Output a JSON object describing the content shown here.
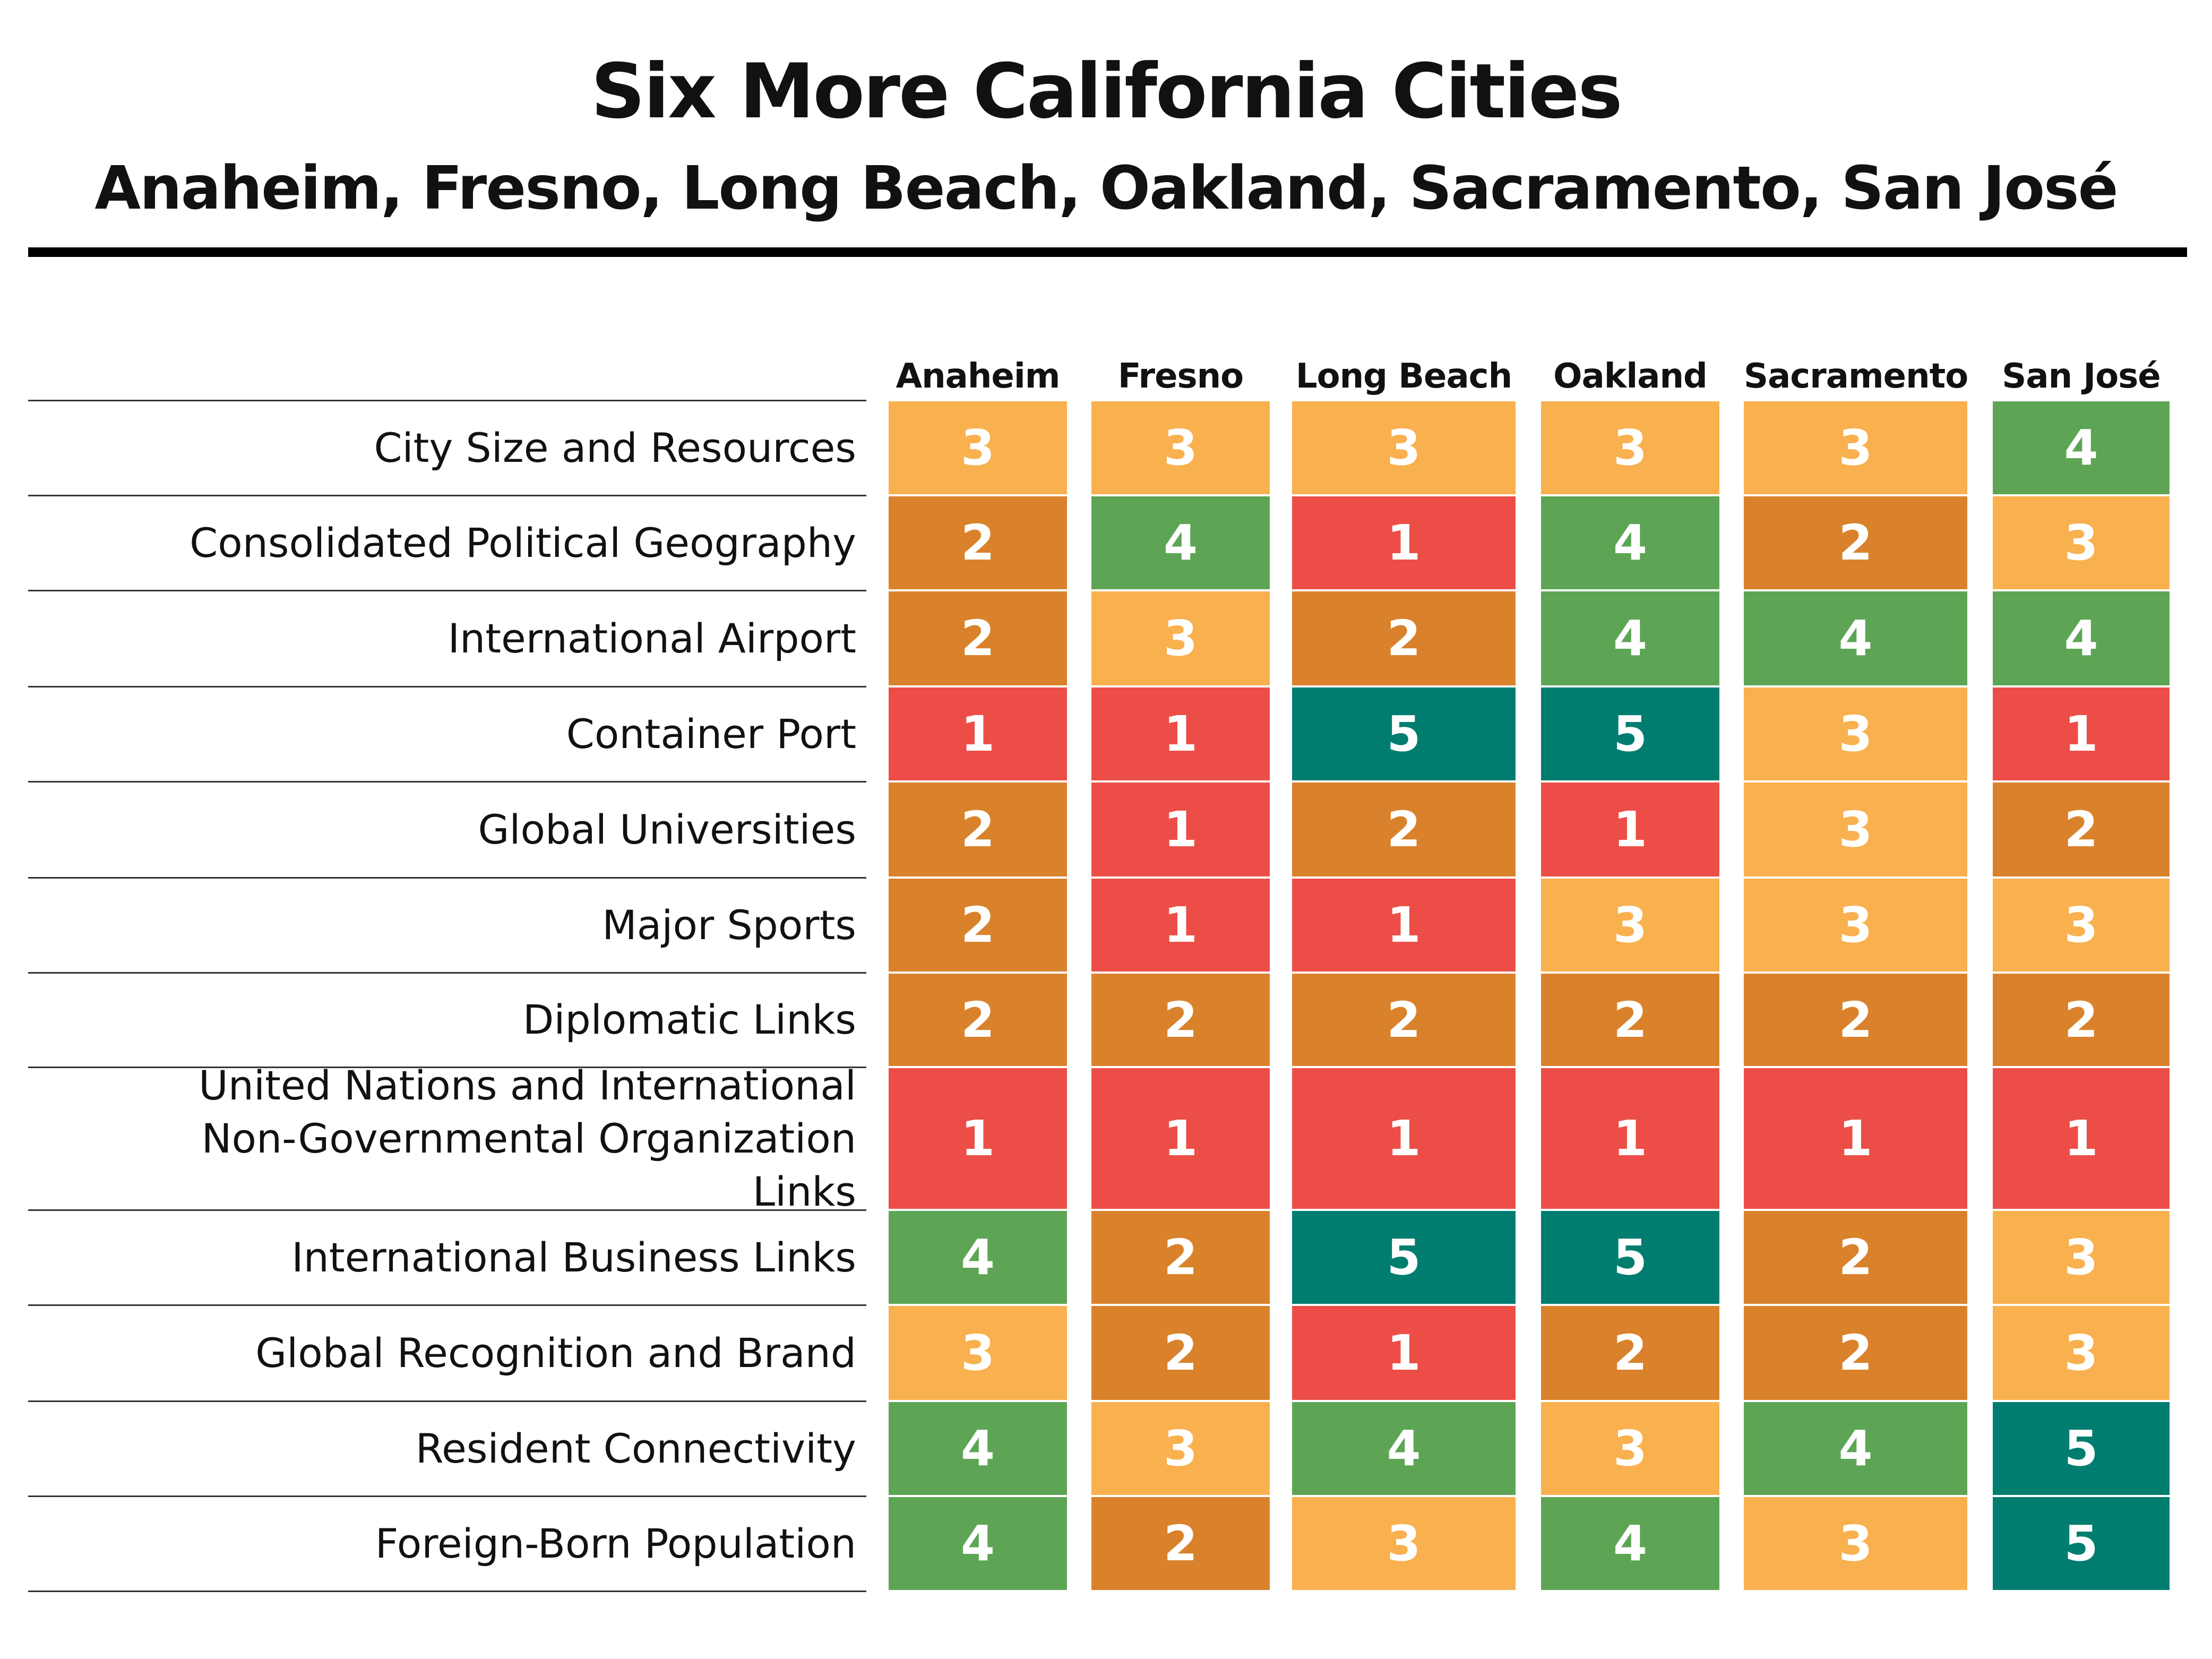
{
  "chart_data": {
    "type": "table",
    "title": "Six More California Cities",
    "subtitle": "Anaheim, Fresno, Long Beach, Oakland, Sacramento, San José",
    "columns": [
      "Anaheim",
      "Fresno",
      "Long  Beach",
      "Oakland",
      "Sacramento",
      "San José"
    ],
    "rows": [
      {
        "label": "City Size and Resources",
        "values": [
          3,
          3,
          3,
          3,
          3,
          4
        ]
      },
      {
        "label": "Consolidated Political Geography",
        "values": [
          2,
          4,
          1,
          4,
          2,
          3
        ]
      },
      {
        "label": "International Airport",
        "values": [
          2,
          3,
          2,
          4,
          4,
          4
        ]
      },
      {
        "label": "Container Port",
        "values": [
          1,
          1,
          5,
          5,
          3,
          1
        ]
      },
      {
        "label": "Global Universities",
        "values": [
          2,
          1,
          2,
          1,
          3,
          2
        ]
      },
      {
        "label": "Major Sports",
        "values": [
          2,
          1,
          1,
          3,
          3,
          3
        ]
      },
      {
        "label": "Diplomatic Links",
        "values": [
          2,
          2,
          2,
          2,
          2,
          2
        ]
      },
      {
        "label": "United Nations and International Non-Governmental Organization Links",
        "values": [
          1,
          1,
          1,
          1,
          1,
          1
        ]
      },
      {
        "label": "International Business Links",
        "values": [
          4,
          2,
          5,
          5,
          2,
          3
        ]
      },
      {
        "label": "Global Recognition and Brand",
        "values": [
          3,
          2,
          1,
          2,
          2,
          3
        ]
      },
      {
        "label": "Resident Connectivity",
        "values": [
          4,
          3,
          4,
          3,
          4,
          5
        ]
      },
      {
        "label": "Foreign-Born Population",
        "values": [
          4,
          2,
          3,
          4,
          3,
          5
        ]
      }
    ],
    "score_colors": {
      "1": "#EC4E47",
      "2": "#D9822B",
      "3": "#F9B04E",
      "4": "#5DA555",
      "5": "#017D70"
    }
  }
}
